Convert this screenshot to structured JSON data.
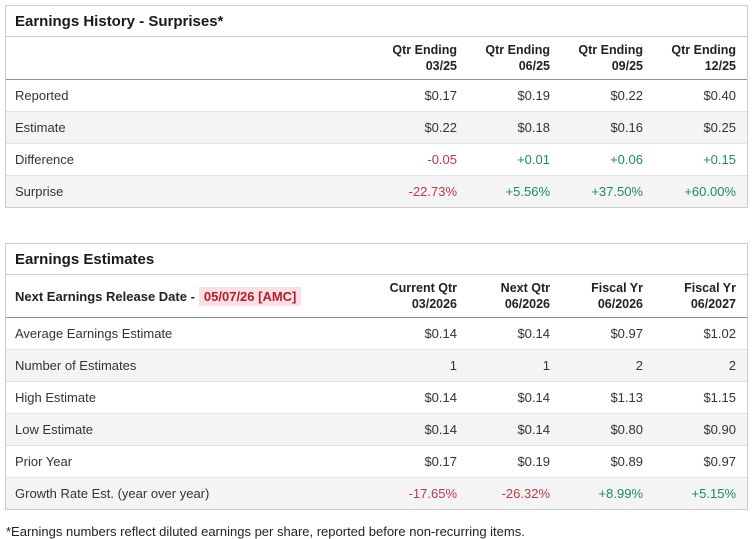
{
  "colors": {
    "positive": "#1e8a6a",
    "negative": "#bd3848",
    "date_text": "#b01f2e",
    "date_bg": "#fcdfe2",
    "title_text": "#1a1a1a",
    "header_text": "#222222",
    "body_text": "#333333",
    "stripe": "#f4f4f4",
    "border": "#cbcbcb",
    "header_border": "#8f8f8f",
    "row_border": "#e2e2e2"
  },
  "surprises_table": {
    "title": "Earnings History - Surprises*",
    "columns": [
      [
        "Qtr Ending",
        "03/25"
      ],
      [
        "Qtr Ending",
        "06/25"
      ],
      [
        "Qtr Ending",
        "09/25"
      ],
      [
        "Qtr Ending",
        "12/25"
      ]
    ],
    "rows": [
      {
        "label": "Reported",
        "values": [
          "$0.17",
          "$0.19",
          "$0.22",
          "$0.40"
        ],
        "tones": [
          "",
          "",
          "",
          ""
        ]
      },
      {
        "label": "Estimate",
        "values": [
          "$0.22",
          "$0.18",
          "$0.16",
          "$0.25"
        ],
        "tones": [
          "",
          "",
          "",
          ""
        ]
      },
      {
        "label": "Difference",
        "values": [
          "-0.05",
          "+0.01",
          "+0.06",
          "+0.15"
        ],
        "tones": [
          "neg",
          "pos",
          "pos",
          "pos"
        ]
      },
      {
        "label": "Surprise",
        "values": [
          "-22.73%",
          "+5.56%",
          "+37.50%",
          "+60.00%"
        ],
        "tones": [
          "neg",
          "pos",
          "pos",
          "pos"
        ]
      }
    ]
  },
  "estimates_table": {
    "title": "Earnings Estimates",
    "release_label": "Next Earnings Release Date -",
    "release_date": "05/07/26 [AMC]",
    "columns": [
      [
        "Current Qtr",
        "03/2026"
      ],
      [
        "Next Qtr",
        "06/2026"
      ],
      [
        "Fiscal Yr",
        "06/2026"
      ],
      [
        "Fiscal Yr",
        "06/2027"
      ]
    ],
    "rows": [
      {
        "label": "Average Earnings Estimate",
        "values": [
          "$0.14",
          "$0.14",
          "$0.97",
          "$1.02"
        ],
        "tones": [
          "",
          "",
          "",
          ""
        ]
      },
      {
        "label": "Number of Estimates",
        "values": [
          "1",
          "1",
          "2",
          "2"
        ],
        "tones": [
          "",
          "",
          "",
          ""
        ]
      },
      {
        "label": "High Estimate",
        "values": [
          "$0.14",
          "$0.14",
          "$1.13",
          "$1.15"
        ],
        "tones": [
          "",
          "",
          "",
          ""
        ]
      },
      {
        "label": "Low Estimate",
        "values": [
          "$0.14",
          "$0.14",
          "$0.80",
          "$0.90"
        ],
        "tones": [
          "",
          "",
          "",
          ""
        ]
      },
      {
        "label": "Prior Year",
        "values": [
          "$0.17",
          "$0.19",
          "$0.89",
          "$0.97"
        ],
        "tones": [
          "",
          "",
          "",
          ""
        ]
      },
      {
        "label": "Growth Rate Est. (year over year)",
        "values": [
          "-17.65%",
          "-26.32%",
          "+8.99%",
          "+5.15%"
        ],
        "tones": [
          "neg",
          "neg",
          "pos",
          "pos"
        ]
      }
    ]
  },
  "footnote": "*Earnings numbers reflect diluted earnings per share, reported before non-recurring items."
}
